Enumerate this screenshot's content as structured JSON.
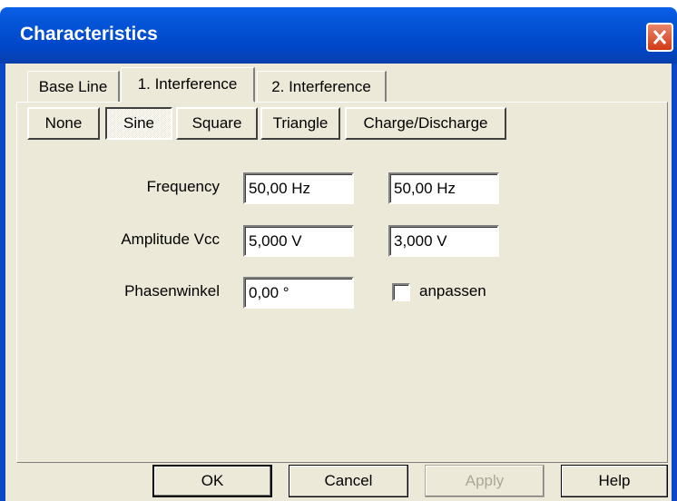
{
  "window": {
    "title": "Characteristics"
  },
  "tabs": [
    "Base Line",
    "1. Interference",
    "2. Interference"
  ],
  "waveforms": [
    "None",
    "Sine",
    "Square",
    "Triangle",
    "Charge/Discharge"
  ],
  "fields": [
    {
      "label": "Frequency",
      "values": [
        "50,00 Hz",
        "50,00 Hz"
      ]
    },
    {
      "label": "Amplitude Vcc",
      "values": [
        "5,000 V",
        "3,000 V"
      ]
    },
    {
      "label": "Phasenwinkel",
      "values": [
        "0,00 °"
      ]
    }
  ],
  "checkbox": {
    "label": "anpassen"
  },
  "buttons": [
    "OK",
    "Cancel",
    "Apply",
    "Help"
  ]
}
